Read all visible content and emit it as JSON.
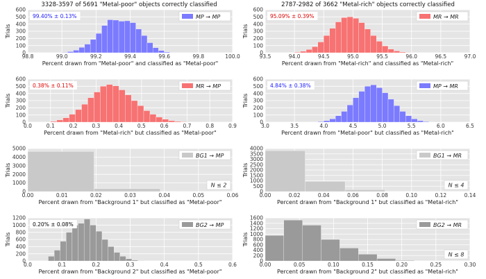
{
  "colors": {
    "panel_bg": "#e5e5e5",
    "grid": "#ffffff",
    "blue": "#7b7bff",
    "red": "#f77272",
    "lightgray": "#c9c9c9",
    "darkgray": "#9a9a9a",
    "ann_blue": "#1a1aff",
    "ann_red": "#dd0000",
    "ann_black": "#000000"
  },
  "titles": {
    "left": "3328-3597 of 5691 \"Metal-poor\" objects correctly classified",
    "right": "2787-2982 of 3662 \"Metal-rich\" objects correctly classified"
  },
  "chart_data": [
    {
      "type": "bar",
      "row": 0,
      "col": 0,
      "color": "blue",
      "ylabel": "Trials",
      "xlabel": "Percent drawn from \"Metal-poor\" and classified as \"Metal-poor\"",
      "xlim": [
        98.8,
        100.0
      ],
      "ylim": [
        0,
        600
      ],
      "xticks": [
        "98.8",
        "99.0",
        "99.2",
        "99.4",
        "99.6",
        "99.8",
        "100.0"
      ],
      "yticks": [
        "0",
        "100",
        "200",
        "300",
        "400",
        "500",
        "600"
      ],
      "annotation": "99.40% ± 0.13%",
      "annotation_color": "ann_blue",
      "legend": "MP → MP",
      "legend_position": "top-right",
      "bin_start": 99.0,
      "bin_width": 0.0333,
      "values": [
        5,
        15,
        35,
        75,
        120,
        185,
        270,
        380,
        460,
        455,
        440,
        445,
        420,
        330,
        240,
        140,
        70,
        30,
        10,
        3
      ]
    },
    {
      "type": "bar",
      "row": 0,
      "col": 1,
      "color": "red",
      "ylabel": "Trials",
      "xlabel": "Percent drawn from \"Metal-rich\" and classified as \"Metal-rich\"",
      "xlim": [
        93.5,
        97.0
      ],
      "ylim": [
        0,
        600
      ],
      "xticks": [
        "93.5",
        "94.0",
        "94.5",
        "95.0",
        "95.5",
        "96.0",
        "96.5",
        "97.0"
      ],
      "yticks": [
        "0",
        "100",
        "200",
        "300",
        "400",
        "500",
        "600"
      ],
      "annotation": "95.09% ± 0.39%",
      "annotation_color": "ann_red",
      "legend": "MR → MR",
      "legend_position": "top-right",
      "bin_start": 93.9,
      "bin_width": 0.1,
      "values": [
        3,
        8,
        20,
        45,
        85,
        150,
        240,
        340,
        430,
        490,
        500,
        480,
        420,
        330,
        240,
        160,
        95,
        50,
        25,
        10,
        4,
        2
      ]
    },
    {
      "type": "bar",
      "row": 1,
      "col": 0,
      "color": "red",
      "ylabel": "Trials",
      "xlabel": "Percent drawn from \"Metal-rich\" but classified as \"Metal-poor\"",
      "xlim": [
        0.0,
        0.9
      ],
      "ylim": [
        0,
        600
      ],
      "xticks": [
        "0.0",
        "0.1",
        "0.2",
        "0.3",
        "0.4",
        "0.5",
        "0.6",
        "0.7",
        "0.8",
        "0.9"
      ],
      "yticks": [
        "0",
        "100",
        "200",
        "300",
        "400",
        "500",
        "600"
      ],
      "annotation": "0.38% ± 0.11%",
      "annotation_color": "ann_red",
      "legend": "MR → MP",
      "legend_position": "top-right",
      "bin_start": 0.1,
      "bin_width": 0.0273,
      "values": [
        10,
        30,
        60,
        110,
        175,
        250,
        340,
        420,
        500,
        525,
        505,
        450,
        380,
        300,
        230,
        160,
        110,
        70,
        40,
        20,
        10,
        5
      ]
    },
    {
      "type": "bar",
      "row": 1,
      "col": 1,
      "color": "blue",
      "ylabel": "Trials",
      "xlabel": "Percent drawn from \"Metal-poor\" but classified as \"Metal-rich\"",
      "xlim": [
        3.0,
        6.5
      ],
      "ylim": [
        0,
        600
      ],
      "xticks": [
        "3.0",
        "3.5",
        "4.0",
        "4.5",
        "5.0",
        "5.5",
        "6.0",
        "6.5"
      ],
      "yticks": [
        "0",
        "100",
        "200",
        "300",
        "400",
        "500",
        "600"
      ],
      "annotation": "4.84% ± 0.38%",
      "annotation_color": "ann_blue",
      "legend": "MP → MR",
      "legend_position": "top-right",
      "bin_start": 3.8,
      "bin_width": 0.1,
      "values": [
        3,
        8,
        20,
        45,
        90,
        150,
        240,
        340,
        430,
        500,
        520,
        480,
        410,
        320,
        230,
        150,
        90,
        45,
        20,
        8,
        3,
        1
      ]
    },
    {
      "type": "bar",
      "row": 2,
      "col": 0,
      "color": "lightgray",
      "ylabel": "Trials",
      "xlabel": "Percent drawn from \"Background 1\" but classified as \"Metal-poor\"",
      "xlim": [
        0.0,
        0.06
      ],
      "ylim": [
        0,
        5000
      ],
      "xticks": [
        "0.00",
        "0.01",
        "0.02",
        "0.03",
        "0.04",
        "0.05",
        "0.06"
      ],
      "yticks": [
        "0",
        "1000",
        "2000",
        "3000",
        "4000",
        "5000"
      ],
      "annotation": "",
      "annotation_color": "ann_black",
      "legend": "BG1 → MP",
      "legend_position": "top-right",
      "n_label": "N ≤ 2",
      "bin_start": 0.0,
      "bin_width": 0.0194,
      "values": [
        4650,
        330
      ]
    },
    {
      "type": "bar",
      "row": 2,
      "col": 1,
      "color": "lightgray",
      "ylabel": "Trials",
      "xlabel": "Percent drawn from \"Background 1\" but classified as \"Metal-rich\"",
      "xlim": [
        0.0,
        0.14
      ],
      "ylim": [
        0,
        4000
      ],
      "xticks": [
        "0.00",
        "0.02",
        "0.04",
        "0.06",
        "0.08",
        "0.10",
        "0.12",
        "0.14"
      ],
      "yticks": [
        "0",
        "500",
        "1000",
        "1500",
        "2000",
        "2500",
        "3000",
        "3500",
        "4000"
      ],
      "annotation": "",
      "annotation_color": "ann_black",
      "legend": "BG1 → MR",
      "legend_position": "top-right",
      "n_label": "N ≤ 4",
      "bin_start": 0.0,
      "bin_width": 0.0273,
      "values": [
        3800,
        950,
        170,
        25
      ]
    },
    {
      "type": "bar",
      "row": 3,
      "col": 0,
      "color": "darkgray",
      "ylabel": "Trials",
      "xlabel": "Percent drawn from \"Background 2\" but classified as \"Metal-poor\"",
      "xlim": [
        0.0,
        0.6
      ],
      "ylim": [
        0,
        1200
      ],
      "xticks": [
        "0.0",
        "0.1",
        "0.2",
        "0.3",
        "0.4",
        "0.5",
        "0.6"
      ],
      "yticks": [
        "0",
        "200",
        "400",
        "600",
        "800",
        "1000",
        "1200"
      ],
      "annotation": "0.20% ± 0.08%",
      "annotation_color": "ann_black",
      "legend": "BG2 → MP",
      "legend_position": "top-right",
      "bin_start": 0.06,
      "bin_width": 0.0175,
      "values": [
        130,
        300,
        550,
        800,
        1000,
        1050,
        1170,
        1000,
        830,
        600,
        400,
        240,
        130,
        60,
        25,
        8
      ]
    },
    {
      "type": "bar",
      "row": 3,
      "col": 1,
      "color": "darkgray",
      "ylabel": "Trials",
      "xlabel": "Percent drawn from \"Background 2\" but classified as \"Metal-rich\"",
      "xlim": [
        0.0,
        0.3
      ],
      "ylim": [
        0,
        1600
      ],
      "xticks": [
        "0.00",
        "0.05",
        "0.10",
        "0.15",
        "0.20",
        "0.25",
        "0.30"
      ],
      "yticks": [
        "0",
        "200",
        "400",
        "600",
        "800",
        "1000",
        "1200",
        "1400",
        "1600"
      ],
      "annotation": "",
      "annotation_color": "ann_black",
      "legend": "BG2 → MR",
      "legend_position": "top-right",
      "n_label": "N ≤ 8",
      "bin_start": 0.0,
      "bin_width": 0.0273,
      "values": [
        950,
        1520,
        1330,
        800,
        480,
        250,
        90,
        20
      ]
    }
  ]
}
